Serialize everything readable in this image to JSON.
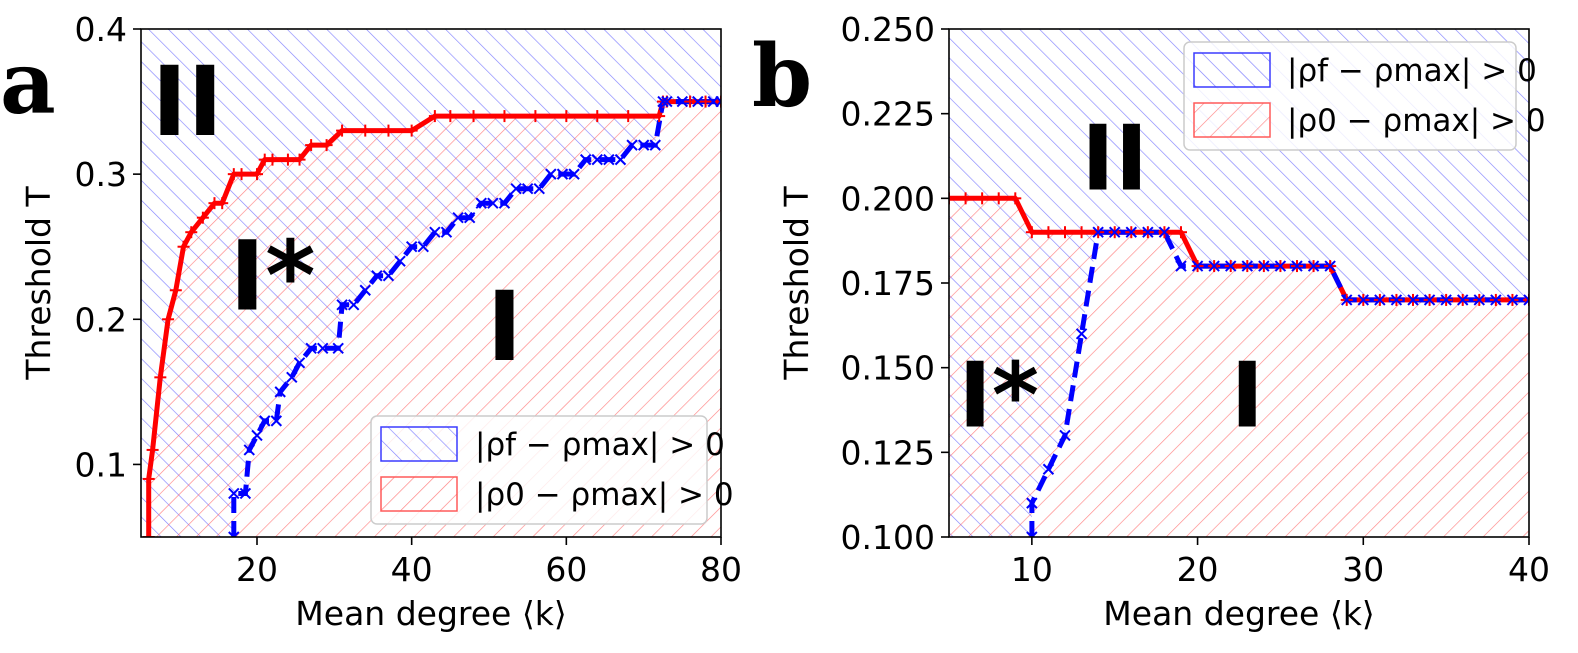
{
  "chart_data": [
    {
      "panel": "a",
      "type": "line",
      "xlabel": "Mean degree ⟨k⟩",
      "ylabel": "Threshold T",
      "xlim": [
        5,
        80
      ],
      "ylim": [
        0.05,
        0.4
      ],
      "xticks": [
        20,
        40,
        60,
        80
      ],
      "xtick_labels": [
        "20",
        "40",
        "60",
        "80"
      ],
      "yticks": [
        0.1,
        0.2,
        0.3,
        0.4
      ],
      "ytick_labels": [
        "0.1",
        "0.2",
        "0.3",
        "0.4"
      ],
      "legend_placement": "lower-right",
      "legend": [
        {
          "text": "|ρf − ρmax| > 0",
          "color": "#3b3bff"
        },
        {
          "text": "|ρ0 − ρmax| > 0",
          "color": "#ff5a5a"
        }
      ],
      "region_labels": [
        {
          "text": "II",
          "x": 11,
          "y": 0.345,
          "size": 96
        },
        {
          "text": "I*",
          "x": 22,
          "y": 0.225,
          "size": 96
        },
        {
          "text": "I",
          "x": 52,
          "y": 0.19,
          "size": 96
        }
      ],
      "series": [
        {
          "color": "#ff0000",
          "marker": "+",
          "dashed": false,
          "x": [
            6,
            6,
            6.5,
            7.5,
            8.5,
            9.5,
            10.5,
            11.5,
            13,
            14.5,
            15.5,
            17,
            18,
            20,
            21,
            22,
            24,
            25.5,
            27,
            29,
            31,
            34,
            37,
            40,
            43,
            45,
            48,
            52,
            56,
            60,
            64,
            68,
            72,
            72.5,
            73,
            76,
            78,
            80
          ],
          "y": [
            0.05,
            0.09,
            0.11,
            0.16,
            0.2,
            0.22,
            0.25,
            0.26,
            0.27,
            0.28,
            0.28,
            0.3,
            0.3,
            0.3,
            0.31,
            0.31,
            0.31,
            0.31,
            0.32,
            0.32,
            0.33,
            0.33,
            0.33,
            0.33,
            0.34,
            0.34,
            0.34,
            0.34,
            0.34,
            0.34,
            0.34,
            0.34,
            0.34,
            0.35,
            0.35,
            0.35,
            0.35,
            0.35
          ]
        },
        {
          "color": "#0000ff",
          "marker": "x",
          "dashed": true,
          "x": [
            17,
            17,
            18.5,
            19,
            20,
            21,
            22.5,
            23,
            24.5,
            25.5,
            27,
            28.5,
            30.5,
            31,
            32.5,
            34,
            35.5,
            37,
            38.5,
            40,
            41.5,
            43,
            44.5,
            46,
            47.5,
            49,
            50.5,
            52,
            53.5,
            55,
            56.5,
            58,
            59.5,
            61,
            62.5,
            64,
            65.5,
            67,
            68.5,
            70,
            71.5,
            72.5,
            73,
            75,
            77,
            79,
            80
          ],
          "y": [
            0.05,
            0.08,
            0.08,
            0.11,
            0.12,
            0.13,
            0.13,
            0.15,
            0.16,
            0.17,
            0.18,
            0.18,
            0.18,
            0.21,
            0.21,
            0.22,
            0.23,
            0.23,
            0.24,
            0.25,
            0.25,
            0.26,
            0.26,
            0.27,
            0.27,
            0.28,
            0.28,
            0.28,
            0.29,
            0.29,
            0.29,
            0.3,
            0.3,
            0.3,
            0.31,
            0.31,
            0.31,
            0.31,
            0.32,
            0.32,
            0.32,
            0.35,
            0.35,
            0.35,
            0.35,
            0.35,
            0.35
          ]
        }
      ]
    },
    {
      "panel": "b",
      "type": "line",
      "xlabel": "Mean degree ⟨k⟩",
      "ylabel": "Threshold T",
      "xlim": [
        5,
        40
      ],
      "ylim": [
        0.1,
        0.25
      ],
      "xticks": [
        10,
        20,
        30,
        40
      ],
      "xtick_labels": [
        "10",
        "20",
        "30",
        "40"
      ],
      "yticks": [
        0.1,
        0.125,
        0.15,
        0.175,
        0.2,
        0.225,
        0.25
      ],
      "ytick_labels": [
        "0.100",
        "0.125",
        "0.150",
        "0.175",
        "0.200",
        "0.225",
        "0.250"
      ],
      "legend_placement": "top-right",
      "legend": [
        {
          "text": "|ρf − ρmax| > 0",
          "color": "#3b3bff"
        },
        {
          "text": "|ρ0 − ρmax| > 0",
          "color": "#ff5a5a"
        }
      ],
      "region_labels": [
        {
          "text": "II",
          "x": 15,
          "y": 0.21,
          "size": 90
        },
        {
          "text": "I*",
          "x": 8,
          "y": 0.14,
          "size": 90
        },
        {
          "text": "I",
          "x": 23,
          "y": 0.14,
          "size": 90
        }
      ],
      "series": [
        {
          "color": "#ff0000",
          "marker": "+",
          "dashed": false,
          "x": [
            5,
            6,
            7,
            8,
            9,
            10,
            11,
            12,
            13,
            14,
            15,
            16,
            17,
            18,
            19,
            20,
            21,
            22,
            23,
            24,
            25,
            26,
            27,
            28,
            29,
            30,
            31,
            32,
            33,
            34,
            35,
            36,
            37,
            38,
            39,
            40
          ],
          "y": [
            0.2,
            0.2,
            0.2,
            0.2,
            0.2,
            0.19,
            0.19,
            0.19,
            0.19,
            0.19,
            0.19,
            0.19,
            0.19,
            0.19,
            0.19,
            0.18,
            0.18,
            0.18,
            0.18,
            0.18,
            0.18,
            0.18,
            0.18,
            0.18,
            0.17,
            0.17,
            0.17,
            0.17,
            0.17,
            0.17,
            0.17,
            0.17,
            0.17,
            0.17,
            0.17,
            0.17
          ]
        },
        {
          "color": "#0000ff",
          "marker": "x",
          "dashed": true,
          "x": [
            10,
            10,
            11,
            12,
            13,
            14,
            15,
            16,
            17,
            18,
            19,
            20,
            21,
            22,
            23,
            24,
            25,
            26,
            27,
            28,
            29,
            30,
            31,
            32,
            33,
            34,
            35,
            36,
            37,
            38,
            39,
            40
          ],
          "y": [
            0.1,
            0.11,
            0.12,
            0.13,
            0.16,
            0.19,
            0.19,
            0.19,
            0.19,
            0.19,
            0.18,
            0.18,
            0.18,
            0.18,
            0.18,
            0.18,
            0.18,
            0.18,
            0.18,
            0.18,
            0.17,
            0.17,
            0.17,
            0.17,
            0.17,
            0.17,
            0.17,
            0.17,
            0.17,
            0.17,
            0.17,
            0.17
          ]
        }
      ]
    }
  ]
}
